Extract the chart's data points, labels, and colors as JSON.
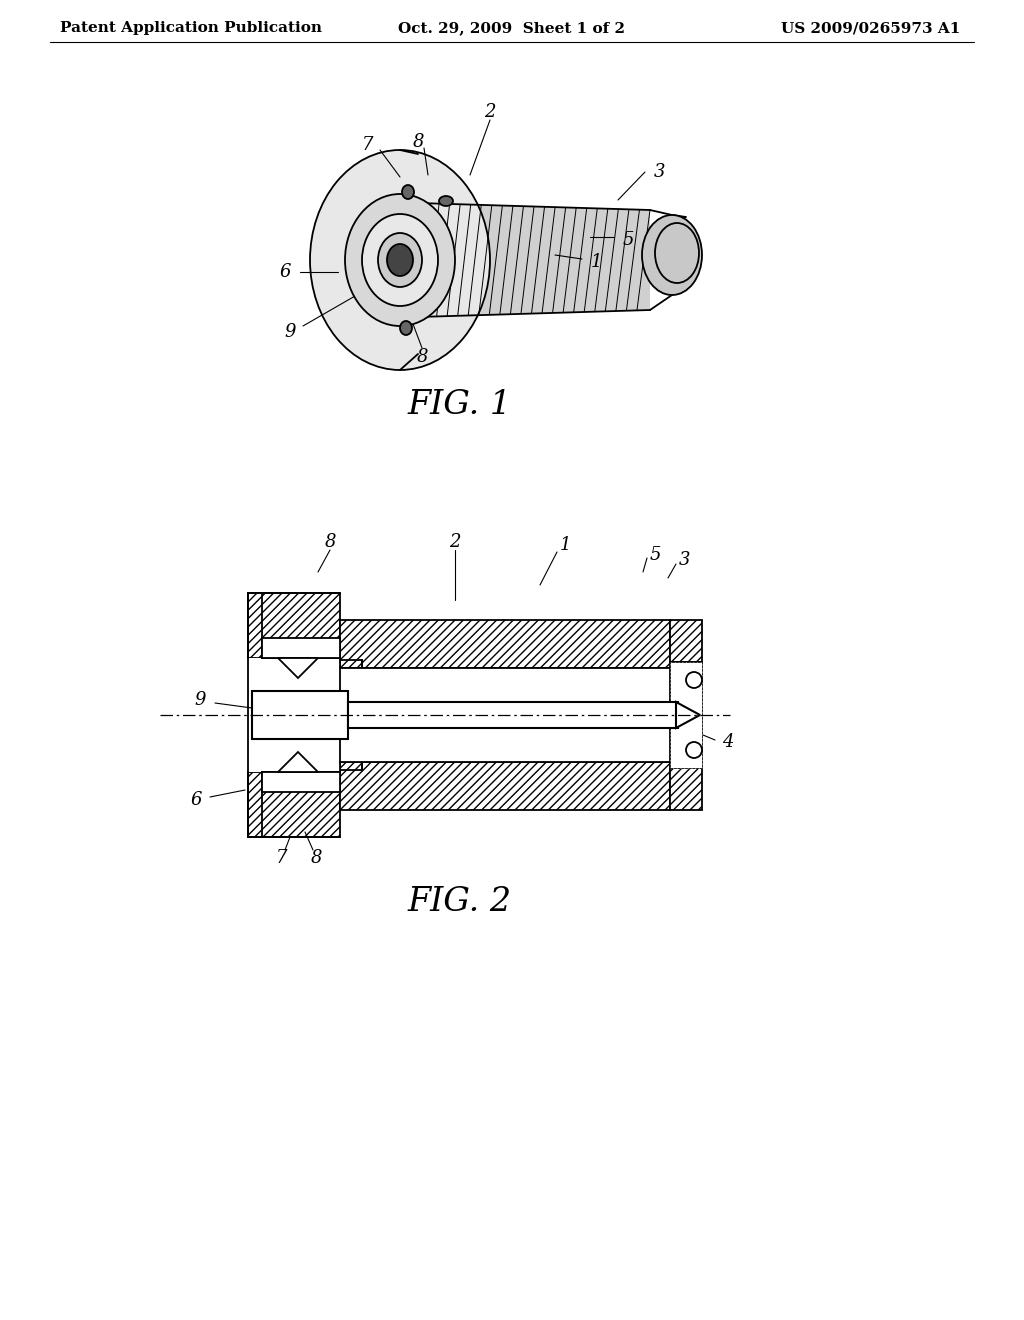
{
  "background_color": "#ffffff",
  "header_left": "Patent Application Publication",
  "header_center": "Oct. 29, 2009  Sheet 1 of 2",
  "header_right": "US 2009/0265973 A1",
  "header_fontsize": 11,
  "fig1_label": "FIG. 1",
  "fig2_label": "FIG. 2",
  "line_color": "#000000",
  "text_color": "#000000",
  "annotation_fontsize": 13,
  "figlabel_fontsize": 24
}
